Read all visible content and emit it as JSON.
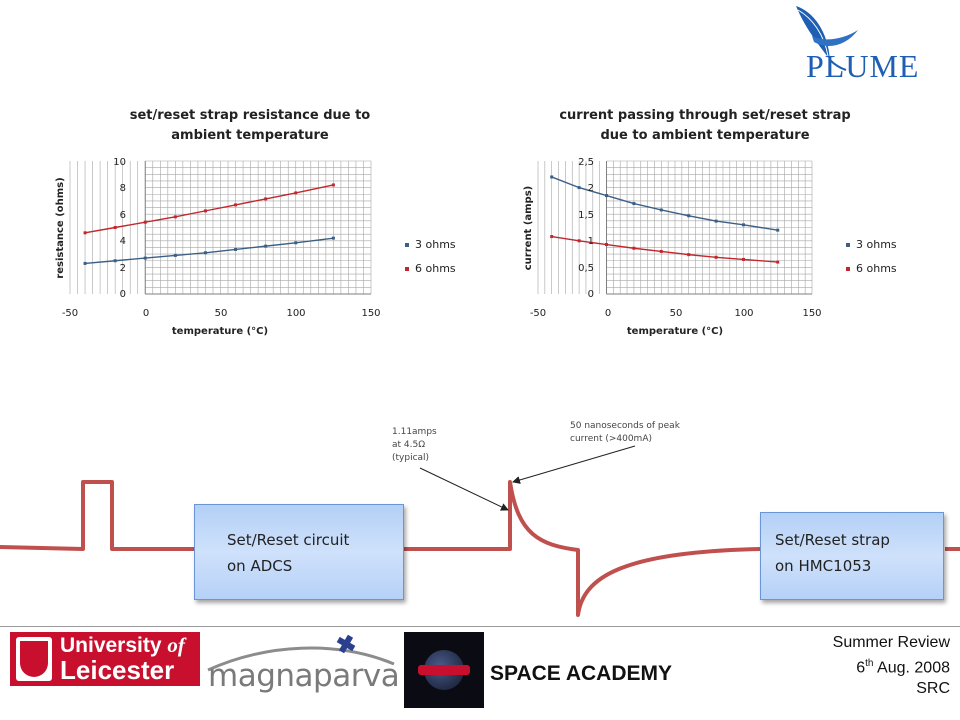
{
  "logo": {
    "text": "PLUME"
  },
  "charts": [
    {
      "title": "set/reset strap resistance due to ambient temperature",
      "xlabel": "temperature (°C)",
      "ylabel": "resistance (ohms)",
      "xticks": [
        "-50",
        "0",
        "50",
        "100",
        "150"
      ],
      "yticks": [
        "0",
        "2",
        "4",
        "6",
        "8",
        "10"
      ],
      "legend": [
        "3 ohms",
        "6 ohms"
      ]
    },
    {
      "title": "current passing through set/reset strap due to ambient temperature",
      "xlabel": "temperature (°C)",
      "ylabel": "current (amps)",
      "xticks": [
        "-50",
        "0",
        "50",
        "100",
        "150"
      ],
      "yticks": [
        "0",
        "0,5",
        "1",
        "1,5",
        "2",
        "2,5"
      ],
      "legend": [
        "3 ohms",
        "6 ohms"
      ]
    }
  ],
  "chart_data": [
    {
      "type": "line",
      "title": "set/reset strap resistance due to ambient temperature",
      "xlabel": "temperature (°C)",
      "ylabel": "resistance (ohms)",
      "xlim": [
        -50,
        150
      ],
      "ylim": [
        0,
        10
      ],
      "grid": true,
      "legend_position": "right",
      "x": [
        -40,
        -20,
        0,
        20,
        40,
        60,
        80,
        100,
        125
      ],
      "series": [
        {
          "name": "3 ohms",
          "color": "#3c5f86",
          "values": [
            2.3,
            2.5,
            2.7,
            2.9,
            3.1,
            3.35,
            3.6,
            3.85,
            4.2
          ]
        },
        {
          "name": "6 ohms",
          "color": "#c0282d",
          "values": [
            4.6,
            5.0,
            5.4,
            5.8,
            6.25,
            6.7,
            7.15,
            7.6,
            8.2
          ]
        }
      ]
    },
    {
      "type": "line",
      "title": "current passing through set/reset strap due to ambient temperature",
      "xlabel": "temperature (°C)",
      "ylabel": "current (amps)",
      "xlim": [
        -50,
        150
      ],
      "ylim": [
        0,
        2.5
      ],
      "grid": true,
      "legend_position": "right",
      "x": [
        -40,
        -20,
        0,
        20,
        40,
        60,
        80,
        100,
        125
      ],
      "series": [
        {
          "name": "3 ohms",
          "color": "#3c5f86",
          "values": [
            2.2,
            2.0,
            1.85,
            1.7,
            1.58,
            1.47,
            1.37,
            1.3,
            1.2
          ]
        },
        {
          "name": "6 ohms",
          "color": "#c0282d",
          "values": [
            1.08,
            1.0,
            0.93,
            0.86,
            0.8,
            0.74,
            0.69,
            0.65,
            0.6
          ]
        }
      ]
    }
  ],
  "diagram": {
    "box_left": [
      "Set/Reset  circuit",
      "on ADCS"
    ],
    "box_right": [
      "Set/Reset  strap",
      "on HMC1053"
    ],
    "annotation_current": [
      "1.11amps",
      "at 4.5Ω",
      "(typical)"
    ],
    "annotation_peak": [
      "50 nanoseconds of peak",
      "current  (>400mA)"
    ],
    "wire_color": "#c0504d"
  },
  "footer": {
    "leicester_line1": "University",
    "leicester_of": "of",
    "leicester_line2": "Leicester",
    "magnaparva": "magnaparva",
    "space_academy": "SPACE ACADEMY",
    "review_line1": "Summer Review",
    "review_day": "6",
    "review_sup": "th",
    "review_date": " Aug. 2008",
    "review_line3": "SRC"
  }
}
